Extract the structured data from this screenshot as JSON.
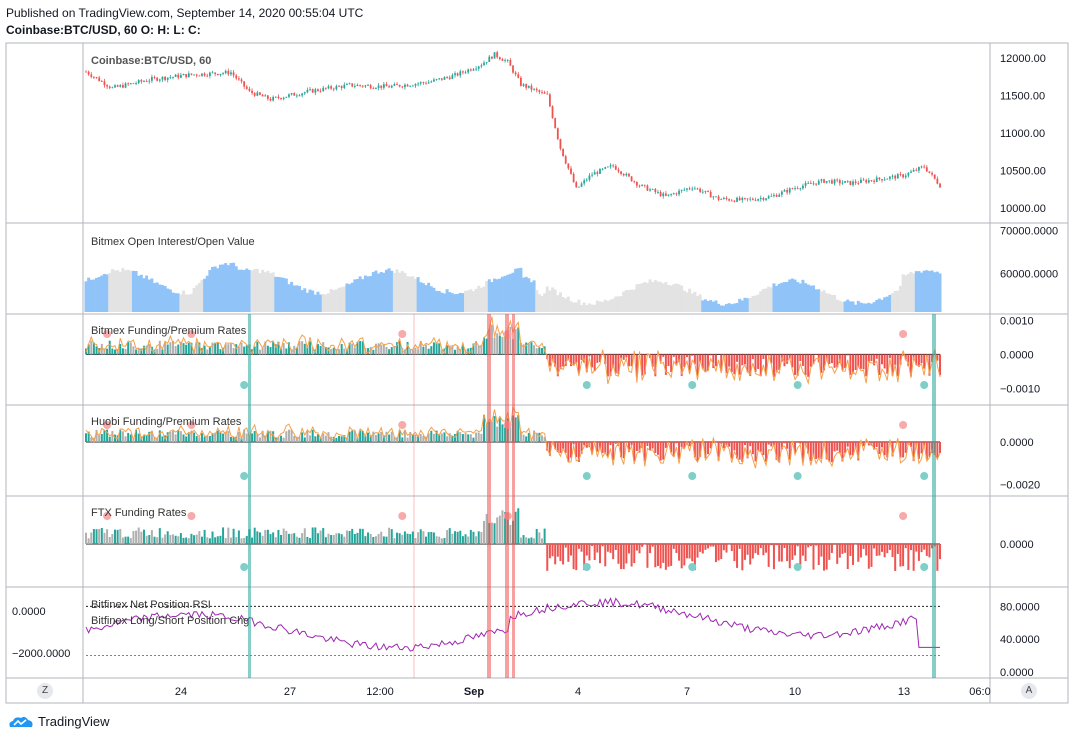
{
  "header": {
    "published": "Published on TradingView.com, September 14, 2020 00:55:04 UTC",
    "symbol": "Coinbase:BTC/USD, 60",
    "ohlc": "O:  H:  L:  C:"
  },
  "footer": {
    "brand": "TradingView"
  },
  "controls": {
    "left_button": "Z",
    "right_button": "A"
  },
  "colors": {
    "up": "#26a69a",
    "down": "#ef5350",
    "oi_blue": "#90c4f9",
    "oi_grey": "#e3e3e3",
    "premium": "#f5a04a",
    "teal": "#26a69a",
    "teal_dark": "#0c8a82",
    "red": "#ef5350",
    "pink": "#f8a9a9",
    "purple": "#9c27b0"
  },
  "chart_data": [
    {
      "type": "candlestick",
      "title": "Coinbase:BTC/USD, 60",
      "yticks": [
        "12000.00",
        "11500.00",
        "11000.00",
        "10500.00",
        "10000.00"
      ],
      "ylim": [
        9850,
        12150
      ],
      "key_points": [
        [
          0,
          11820
        ],
        [
          10,
          11600
        ],
        [
          25,
          11720
        ],
        [
          40,
          11780
        ],
        [
          55,
          11810
        ],
        [
          62,
          11550
        ],
        [
          70,
          11450
        ],
        [
          85,
          11560
        ],
        [
          100,
          11640
        ],
        [
          115,
          11620
        ],
        [
          130,
          11680
        ],
        [
          140,
          11770
        ],
        [
          150,
          11920
        ],
        [
          155,
          12050
        ],
        [
          160,
          11950
        ],
        [
          165,
          11650
        ],
        [
          175,
          11500
        ],
        [
          180,
          10800
        ],
        [
          186,
          10250
        ],
        [
          192,
          10450
        ],
        [
          200,
          10560
        ],
        [
          210,
          10300
        ],
        [
          220,
          10150
        ],
        [
          230,
          10280
        ],
        [
          240,
          10120
        ],
        [
          250,
          10100
        ],
        [
          260,
          10150
        ],
        [
          270,
          10280
        ],
        [
          280,
          10360
        ],
        [
          290,
          10330
        ],
        [
          300,
          10380
        ],
        [
          310,
          10430
        ],
        [
          318,
          10550
        ],
        [
          324,
          10300
        ]
      ],
      "n": 325
    },
    {
      "type": "area",
      "title": "Bitmex Open Interest/Open Value",
      "yticks": [
        "70000.0000",
        "60000.0000"
      ],
      "ylim": [
        51000,
        71000
      ]
    },
    {
      "type": "histogram+line",
      "title": "Bitmex Funding/Premium Rates",
      "yticks": [
        "0.0010",
        "0.0000",
        "−0.0010"
      ],
      "ylim": [
        -0.0014,
        0.0011
      ]
    },
    {
      "type": "histogram+line",
      "title": "Huobi Funding/Premium Rates",
      "yticks": [
        "0.0000",
        "−0.0020"
      ],
      "ylim": [
        -0.0024,
        0.0016
      ]
    },
    {
      "type": "histogram",
      "title": "FTX Funding Rates",
      "yticks": [
        "0.0000"
      ],
      "ylim": [
        -0.0008,
        0.0009
      ]
    },
    {
      "type": "line+histogram",
      "title": "Bitfinex Net Position RSI",
      "subtitle": "Bitfinex Long/Short Position Chg",
      "yticks_right": [
        "80.0000",
        "40.0000",
        "0.0000"
      ],
      "yticks_left": [
        "0.0000",
        "−2000.0000"
      ]
    }
  ],
  "x_axis": {
    "labels": [
      "24",
      "27",
      "12:00",
      "Sep",
      "4",
      "7",
      "10",
      "13",
      "06:0"
    ]
  }
}
